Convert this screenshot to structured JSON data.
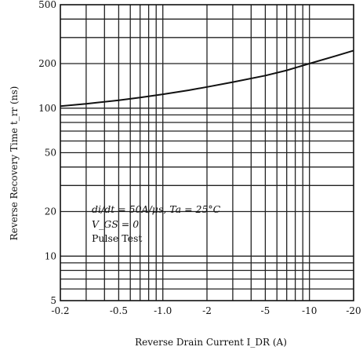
{
  "chart_data": {
    "type": "line",
    "x_scale": "log",
    "y_scale": "log",
    "x_direction": "negative",
    "xlim": [
      -0.2,
      -20
    ],
    "ylim": [
      5,
      500
    ],
    "grid": true,
    "x_ticks": [
      "-0.2",
      "-0.5",
      "-1.0",
      "-2",
      "-5",
      "-10",
      "-20"
    ],
    "x_tick_values": [
      -0.2,
      -0.5,
      -1,
      -2,
      -5,
      -10,
      -20
    ],
    "y_ticks": [
      "500",
      "200",
      "100",
      "50",
      "20",
      "10",
      "5"
    ],
    "y_tick_values": [
      500,
      200,
      100,
      50,
      20,
      10,
      5
    ],
    "xlabel": "Reverse Drain Current I_DR (A)",
    "ylabel": "Reverse Recovery Time t_rr (ns)",
    "annotations": [
      "di/dt = 50A/μs, Ta = 25°C",
      "V_GS = 0",
      "Pulse Test"
    ],
    "series": [
      {
        "x": [
          -0.2,
          -0.3,
          -0.5,
          -0.7,
          -1.0,
          -1.5,
          -2,
          -3,
          -5,
          -7,
          -10,
          -15,
          -20
        ],
        "y": [
          103,
          107,
          113,
          118,
          124,
          132,
          139,
          150,
          166,
          180,
          200,
          225,
          245
        ]
      }
    ]
  }
}
